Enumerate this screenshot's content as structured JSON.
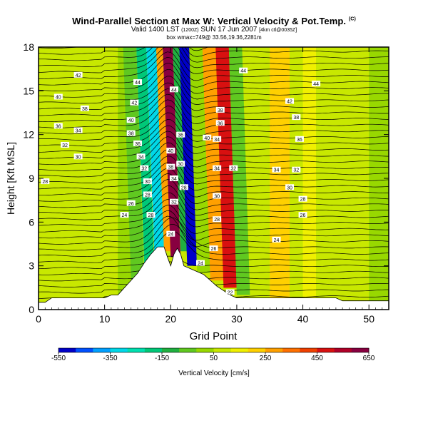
{
  "chart_data": {
    "type": "heatmap",
    "title": "Wind-Parallel Section at Max W: Vertical Velocity & Pot.Temp.",
    "title_mark": "(C)",
    "subtitle": {
      "valid": "Valid 1400 LST",
      "utc": "(1200Z)",
      "date": "SUN 17 Jun 2007",
      "grid": "[4km ctl@0035Z]",
      "location": "box wmax=749@ 33.56,19.36,2281m"
    },
    "ylabel": "Height [Kft MSL]",
    "xlabel": "Grid Point",
    "xlim": [
      0,
      53
    ],
    "ylim": [
      0,
      18
    ],
    "xticks": [
      0,
      10,
      20,
      30,
      40,
      50
    ],
    "yticks": [
      0,
      3,
      6,
      9,
      12,
      15,
      18
    ],
    "colorbar": {
      "label": "Vertical Velocity [cm/s]",
      "ticks": [
        -550,
        -350,
        -150,
        50,
        250,
        450,
        650
      ],
      "range": [
        -550,
        650
      ],
      "colors": [
        "#0000c8",
        "#0050ff",
        "#00a0ff",
        "#00d8e8",
        "#00e0b0",
        "#00c878",
        "#20b040",
        "#60c820",
        "#98d800",
        "#c8e800",
        "#f0f000",
        "#ffd000",
        "#ffa000",
        "#ff7000",
        "#f04000",
        "#d81010",
        "#b00028",
        "#880040"
      ]
    },
    "terrain": [
      [
        0,
        0.5
      ],
      [
        1,
        0.5
      ],
      [
        2,
        0.8
      ],
      [
        3,
        0.8
      ],
      [
        4,
        0.8
      ],
      [
        5,
        0.8
      ],
      [
        6,
        0.8
      ],
      [
        7,
        0.8
      ],
      [
        8,
        0.8
      ],
      [
        9,
        0.8
      ],
      [
        10,
        0.8
      ],
      [
        11,
        1.0
      ],
      [
        12,
        1.0
      ],
      [
        13,
        1.5
      ],
      [
        14,
        2.0
      ],
      [
        15,
        2.5
      ],
      [
        16,
        3.2
      ],
      [
        17,
        3.8
      ],
      [
        18,
        4.3
      ],
      [
        19,
        4.3
      ],
      [
        19.5,
        3.6
      ],
      [
        20,
        3.0
      ],
      [
        20.5,
        3.8
      ],
      [
        21,
        4.2
      ],
      [
        21.5,
        3.8
      ],
      [
        22,
        3.0
      ],
      [
        23,
        2.8
      ],
      [
        24,
        2.6
      ],
      [
        25,
        2.4
      ],
      [
        26,
        2.0
      ],
      [
        27,
        1.6
      ],
      [
        28,
        1.3
      ],
      [
        29,
        1.0
      ],
      [
        30,
        0.8
      ],
      [
        31,
        0.8
      ],
      [
        32,
        0.8
      ],
      [
        33,
        0.8
      ],
      [
        34,
        0.8
      ],
      [
        35,
        0.8
      ],
      [
        36,
        0.8
      ],
      [
        37,
        0.8
      ],
      [
        38,
        0.8
      ],
      [
        39,
        0.8
      ],
      [
        40,
        0.8
      ],
      [
        41,
        0.8
      ],
      [
        42,
        0.8
      ],
      [
        43,
        0.8
      ],
      [
        44,
        0.8
      ],
      [
        45,
        0.8
      ],
      [
        46,
        0.6
      ],
      [
        47,
        0.6
      ],
      [
        48,
        0.6
      ],
      [
        49,
        0.6
      ],
      [
        50,
        0.6
      ],
      [
        51,
        0.6
      ],
      [
        52,
        0.6
      ],
      [
        53,
        0.6
      ]
    ],
    "velocity_bands": [
      {
        "x": 0,
        "y": [
          0,
          18
        ],
        "w": 60
      },
      {
        "x": 6,
        "y": [
          0,
          18
        ],
        "w": 60
      },
      {
        "x": 12,
        "y": [
          0,
          18
        ],
        "w": 30
      },
      {
        "x": 14,
        "y": [
          2,
          18
        ],
        "w": -80
      },
      {
        "x": 16,
        "y": [
          3,
          18
        ],
        "w": -200
      },
      {
        "x": 17.5,
        "y": [
          4,
          18
        ],
        "w": -300
      },
      {
        "x": 19,
        "y": [
          4,
          18
        ],
        "w": 300
      },
      {
        "x": 20,
        "y": [
          3.6,
          18
        ],
        "w": 650
      },
      {
        "x": 21.5,
        "y": [
          4,
          18
        ],
        "w": -150
      },
      {
        "x": 22.5,
        "y": [
          3,
          18
        ],
        "w": -550
      },
      {
        "x": 24,
        "y": [
          2.5,
          18
        ],
        "w": 0
      },
      {
        "x": 26,
        "y": [
          2,
          18
        ],
        "w": 300
      },
      {
        "x": 28,
        "y": [
          1.5,
          18
        ],
        "w": 450
      },
      {
        "x": 30,
        "y": [
          1,
          18
        ],
        "w": -50
      },
      {
        "x": 32,
        "y": [
          0.8,
          18
        ],
        "w": 80
      },
      {
        "x": 35,
        "y": [
          0.8,
          18
        ],
        "w": 200
      },
      {
        "x": 38,
        "y": [
          0.8,
          18
        ],
        "w": 60
      },
      {
        "x": 40,
        "y": [
          0.8,
          18
        ],
        "w": 150
      },
      {
        "x": 42,
        "y": [
          0.8,
          18
        ],
        "w": 50
      },
      {
        "x": 46,
        "y": [
          0.6,
          18
        ],
        "w": 100
      },
      {
        "x": 50,
        "y": [
          0.6,
          18
        ],
        "w": 30
      }
    ],
    "contour_labels": [
      {
        "text": "42",
        "x": 6,
        "y": 16.1
      },
      {
        "text": "40",
        "x": 3,
        "y": 14.6
      },
      {
        "text": "38",
        "x": 7,
        "y": 13.8
      },
      {
        "text": "36",
        "x": 3,
        "y": 12.6
      },
      {
        "text": "34",
        "x": 6,
        "y": 12.3
      },
      {
        "text": "32",
        "x": 4,
        "y": 11.3
      },
      {
        "text": "30",
        "x": 6,
        "y": 10.5
      },
      {
        "text": "28",
        "x": 1,
        "y": 8.8
      },
      {
        "text": "26",
        "x": 14,
        "y": 7.3
      },
      {
        "text": "24",
        "x": 13,
        "y": 6.5
      },
      {
        "text": "44",
        "x": 15,
        "y": 15.6
      },
      {
        "text": "44",
        "x": 20.5,
        "y": 15.1
      },
      {
        "text": "44",
        "x": 31,
        "y": 16.4
      },
      {
        "text": "44",
        "x": 42,
        "y": 15.5
      },
      {
        "text": "42",
        "x": 14.5,
        "y": 14.2
      },
      {
        "text": "40",
        "x": 14,
        "y": 13
      },
      {
        "text": "38",
        "x": 14,
        "y": 12.1
      },
      {
        "text": "36",
        "x": 15,
        "y": 11.4
      },
      {
        "text": "34",
        "x": 15.5,
        "y": 10.5
      },
      {
        "text": "32",
        "x": 16,
        "y": 9.7
      },
      {
        "text": "30",
        "x": 16.5,
        "y": 8.8
      },
      {
        "text": "28",
        "x": 16.5,
        "y": 7.9
      },
      {
        "text": "28",
        "x": 17,
        "y": 6.5
      },
      {
        "text": "36",
        "x": 21.5,
        "y": 12
      },
      {
        "text": "40",
        "x": 20,
        "y": 10.9
      },
      {
        "text": "38",
        "x": 20,
        "y": 9.8
      },
      {
        "text": "34",
        "x": 20.5,
        "y": 9
      },
      {
        "text": "30",
        "x": 21.5,
        "y": 10
      },
      {
        "text": "28",
        "x": 22,
        "y": 8.4
      },
      {
        "text": "32",
        "x": 20.5,
        "y": 7.4
      },
      {
        "text": "24",
        "x": 20,
        "y": 5.2
      },
      {
        "text": "38",
        "x": 27.5,
        "y": 13.7
      },
      {
        "text": "36",
        "x": 27.5,
        "y": 12.8
      },
      {
        "text": "40",
        "x": 25.5,
        "y": 11.8
      },
      {
        "text": "34",
        "x": 27,
        "y": 11.7
      },
      {
        "text": "32",
        "x": 29.5,
        "y": 9.7
      },
      {
        "text": "34",
        "x": 27,
        "y": 9.7
      },
      {
        "text": "30",
        "x": 27,
        "y": 7.8
      },
      {
        "text": "28",
        "x": 27,
        "y": 6.2
      },
      {
        "text": "26",
        "x": 26.5,
        "y": 4.2
      },
      {
        "text": "24",
        "x": 24.5,
        "y": 3.2
      },
      {
        "text": "42",
        "x": 38,
        "y": 14.3
      },
      {
        "text": "38",
        "x": 39,
        "y": 13.2
      },
      {
        "text": "36",
        "x": 39.5,
        "y": 11.7
      },
      {
        "text": "34",
        "x": 36,
        "y": 9.6
      },
      {
        "text": "32",
        "x": 39,
        "y": 9.6
      },
      {
        "text": "30",
        "x": 38,
        "y": 8.4
      },
      {
        "text": "28",
        "x": 40,
        "y": 7.6
      },
      {
        "text": "26",
        "x": 40,
        "y": 6.5
      },
      {
        "text": "24",
        "x": 36,
        "y": 4.8
      },
      {
        "text": "22",
        "x": 29,
        "y": 1.2
      }
    ]
  }
}
